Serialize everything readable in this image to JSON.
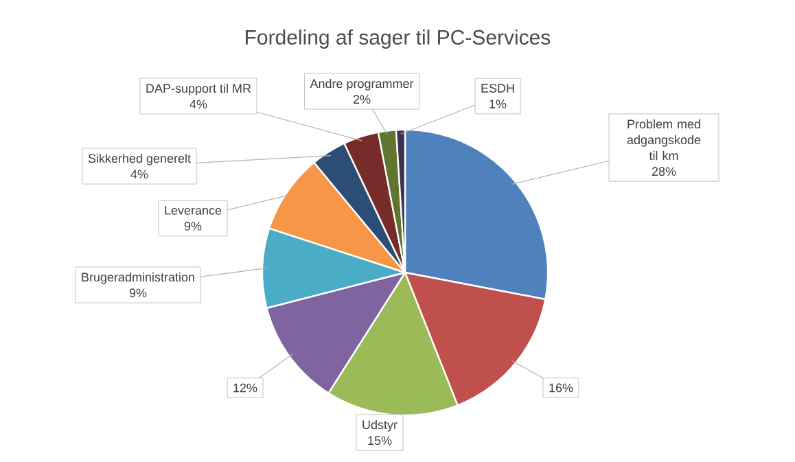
{
  "chart_data": {
    "type": "pie",
    "title": "Fordeling af sager til PC-Services",
    "categories": [
      "Problem med adgangskode til km",
      null,
      "Udstyr",
      null,
      "Brugeradministration",
      "Leverance",
      "Sikkerhed generelt",
      "DAP-support til MR",
      "Andre programmer",
      "ESDH"
    ],
    "values": [
      28,
      16,
      15,
      12,
      9,
      9,
      4,
      4,
      2,
      1
    ],
    "value_labels": [
      "28%",
      "16%",
      "15%",
      "12%",
      "9%",
      "9%",
      "4%",
      "4%",
      "2%",
      "1%"
    ],
    "colors": [
      "#4f81bd",
      "#c0504d",
      "#9bbb59",
      "#8064a2",
      "#4bacc6",
      "#f79646",
      "#2c4d75",
      "#772c2a",
      "#5f7530",
      "#3e3151"
    ]
  }
}
